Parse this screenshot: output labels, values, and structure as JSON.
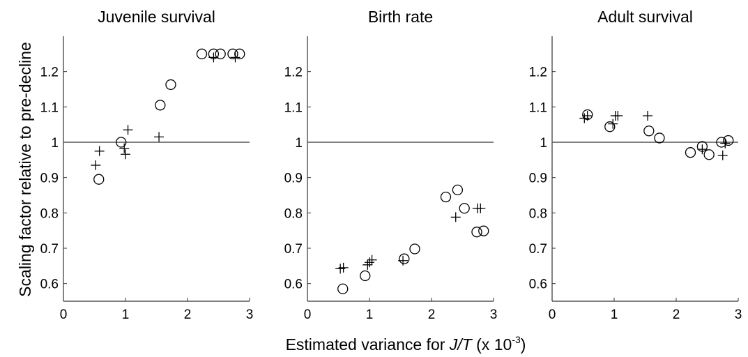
{
  "figure": {
    "ylabel": "Scaling factor relative to pre-decline",
    "xlabel_prefix": "Estimated variance for ",
    "xlabel_italic": "J/T",
    "xlabel_suffix": " (x 10",
    "xlabel_exponent": "-3",
    "xlabel_close": ")"
  },
  "chart_data": [
    {
      "type": "scatter",
      "title": "Juvenile survival",
      "xlim": [
        0,
        3
      ],
      "ylim": [
        0.55,
        1.3
      ],
      "xticks": [
        0,
        1,
        2,
        3
      ],
      "yticks": [
        0.6,
        0.7,
        0.8,
        0.9,
        1,
        1.1,
        1.2
      ],
      "xtick_labels": [
        "0",
        "1",
        "2",
        "3"
      ],
      "ytick_labels": [
        "0.6",
        "0.7",
        "0.8",
        "0.9",
        "1",
        "1.1",
        "1.2"
      ],
      "reference_line_y": 1,
      "grid": false,
      "series": [
        {
          "marker": "circle",
          "points": [
            [
              0.57,
              0.895
            ],
            [
              0.93,
              1.0
            ],
            [
              1.56,
              1.105
            ],
            [
              1.73,
              1.163
            ],
            [
              2.23,
              1.25
            ],
            [
              2.42,
              1.25
            ],
            [
              2.53,
              1.25
            ],
            [
              2.73,
              1.25
            ],
            [
              2.84,
              1.25
            ]
          ]
        },
        {
          "marker": "plus",
          "points": [
            [
              0.52,
              0.935
            ],
            [
              0.58,
              0.975
            ],
            [
              0.98,
              0.983
            ],
            [
              1.0,
              0.966
            ],
            [
              1.04,
              1.035
            ],
            [
              1.54,
              1.015
            ],
            [
              2.42,
              1.24
            ],
            [
              2.77,
              1.24
            ]
          ]
        }
      ]
    },
    {
      "type": "scatter",
      "title": "Birth rate",
      "xlim": [
        0,
        3
      ],
      "ylim": [
        0.55,
        1.3
      ],
      "xticks": [
        0,
        1,
        2,
        3
      ],
      "yticks": [
        0.6,
        0.7,
        0.8,
        0.9,
        1,
        1.1,
        1.2
      ],
      "xtick_labels": [
        "0",
        "1",
        "2",
        "3"
      ],
      "ytick_labels": [
        "0.6",
        "0.7",
        "0.8",
        "0.9",
        "1",
        "1.1",
        "1.2"
      ],
      "reference_line_y": 1,
      "grid": false,
      "series": [
        {
          "marker": "circle",
          "points": [
            [
              0.57,
              0.585
            ],
            [
              0.93,
              0.622
            ],
            [
              1.56,
              0.67
            ],
            [
              1.73,
              0.698
            ],
            [
              2.23,
              0.845
            ],
            [
              2.42,
              0.865
            ],
            [
              2.53,
              0.813
            ],
            [
              2.73,
              0.746
            ],
            [
              2.84,
              0.749
            ]
          ]
        },
        {
          "marker": "plus",
          "points": [
            [
              0.53,
              0.642
            ],
            [
              0.58,
              0.645
            ],
            [
              0.97,
              0.653
            ],
            [
              1.0,
              0.66
            ],
            [
              1.04,
              0.667
            ],
            [
              1.54,
              0.665
            ],
            [
              2.39,
              0.788
            ],
            [
              2.74,
              0.813
            ],
            [
              2.79,
              0.813
            ]
          ]
        }
      ]
    },
    {
      "type": "scatter",
      "title": "Adult survival",
      "xlim": [
        0,
        3
      ],
      "ylim": [
        0.55,
        1.3
      ],
      "xticks": [
        0,
        1,
        2,
        3
      ],
      "yticks": [
        0.6,
        0.7,
        0.8,
        0.9,
        1,
        1.1,
        1.2
      ],
      "xtick_labels": [
        "0",
        "1",
        "2",
        "3"
      ],
      "ytick_labels": [
        "0.6",
        "0.7",
        "0.8",
        "0.9",
        "1",
        "1.1",
        "1.2"
      ],
      "reference_line_y": 1,
      "grid": false,
      "series": [
        {
          "marker": "circle",
          "points": [
            [
              0.57,
              1.078
            ],
            [
              0.93,
              1.044
            ],
            [
              1.56,
              1.032
            ],
            [
              1.73,
              1.012
            ],
            [
              2.23,
              0.971
            ],
            [
              2.42,
              0.988
            ],
            [
              2.53,
              0.965
            ],
            [
              2.73,
              1.0
            ],
            [
              2.84,
              1.005
            ]
          ]
        },
        {
          "marker": "plus",
          "points": [
            [
              0.52,
              1.068
            ],
            [
              0.57,
              1.075
            ],
            [
              0.98,
              1.052
            ],
            [
              1.02,
              1.075
            ],
            [
              1.06,
              1.075
            ],
            [
              1.54,
              1.075
            ],
            [
              2.42,
              0.98
            ],
            [
              2.75,
              0.963
            ],
            [
              2.79,
              0.997
            ]
          ]
        }
      ]
    }
  ]
}
